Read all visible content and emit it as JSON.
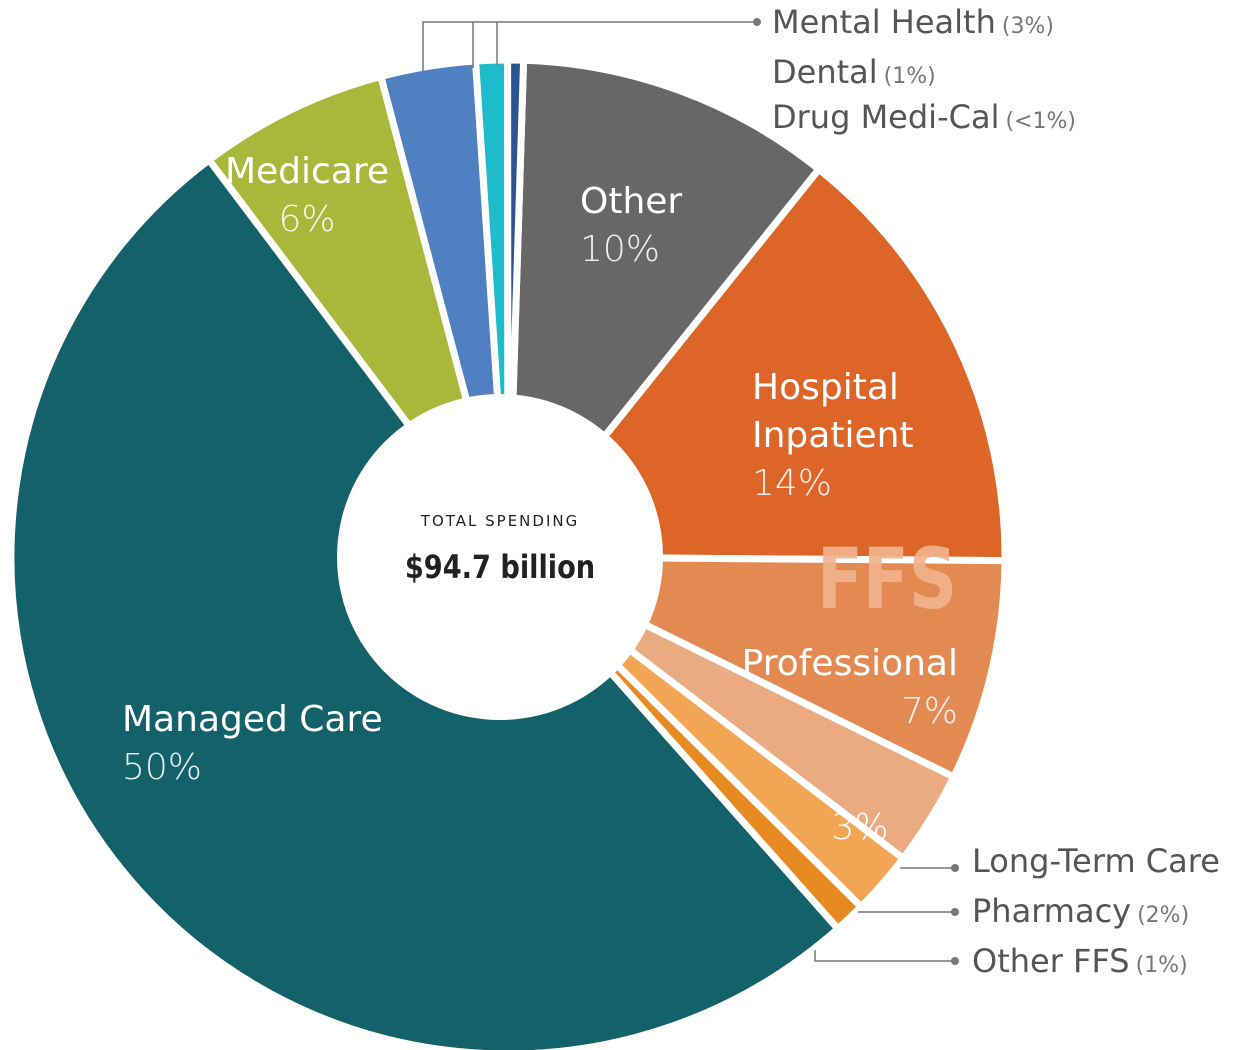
{
  "chart_data": {
    "type": "pie",
    "hole": true,
    "categories": [
      "Other",
      "Hospital Inpatient",
      "Professional",
      "Long-Term Care",
      "Pharmacy",
      "Other FFS",
      "Managed Care",
      "Medicare",
      "Mental Health",
      "Dental",
      "Drug Medi-Cal"
    ],
    "values": [
      10,
      14,
      7,
      3,
      2,
      1,
      50,
      6,
      3,
      1,
      0.5
    ],
    "value_labels": [
      "10%",
      "14%",
      "7%",
      "3%",
      "(2%)",
      "(1%)",
      "50%",
      "6%",
      "(3%)",
      "(1%)",
      "(<1%)"
    ],
    "colors": [
      "#666766",
      "#dd6527",
      "#e38a52",
      "#ebab80",
      "#f2a553",
      "#e88a22",
      "#12616b",
      "#a7b83b",
      "#4f80c2",
      "#1ebbcc",
      "#2b5592"
    ],
    "center_label": "TOTAL SPENDING",
    "center_value": "$94.7 billion",
    "annotation": "FFS"
  }
}
